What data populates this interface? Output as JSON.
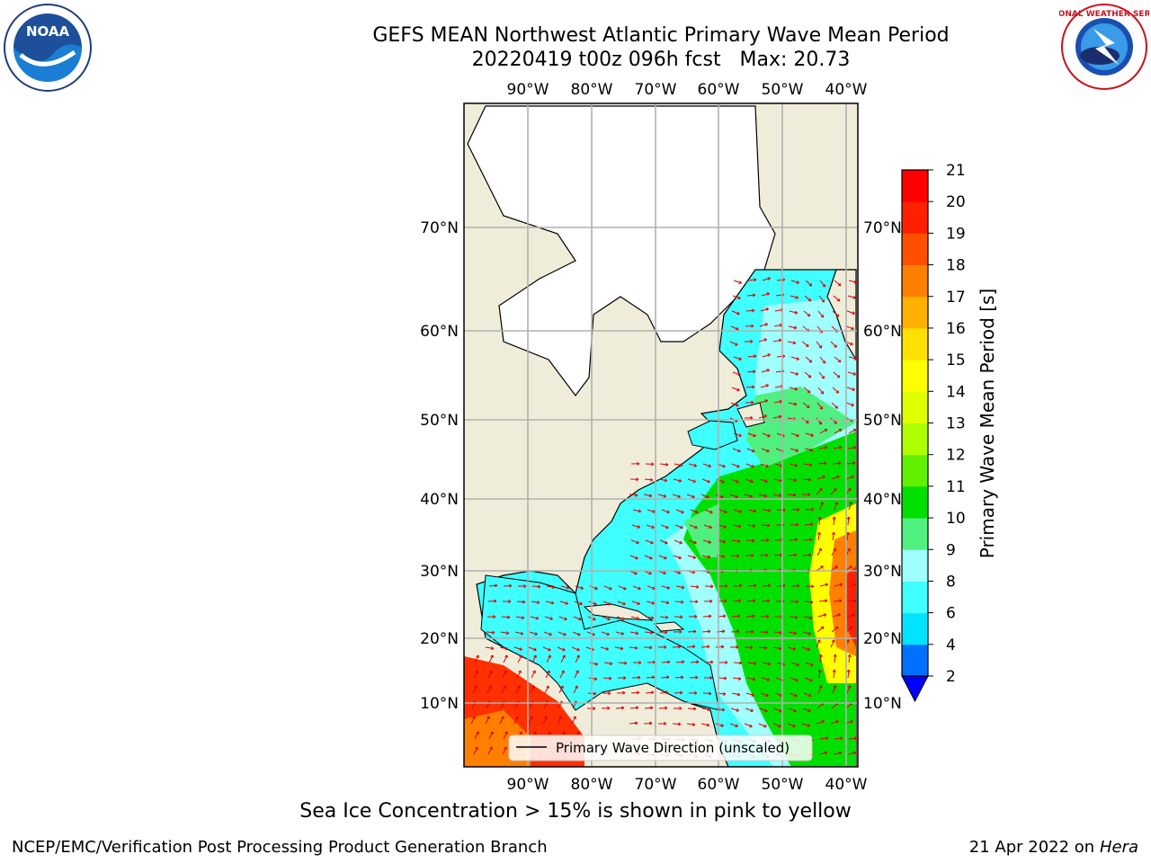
{
  "header": {
    "title_line1": "GEFS MEAN Northwest Atlantic Primary Wave Mean Period",
    "title_line2": "20220419 t00z 096h fcst   Max: 20.73"
  },
  "footer": {
    "note": "Sea Ice Concentration > 15% is shown in pink to yellow",
    "credit": "NCEP/EMC/Verification Post Processing Product Generation Branch",
    "date": "21 Apr 2022 on ",
    "machine": "Hera"
  },
  "logos": {
    "noaa_text": "NOAA",
    "nws_ring_text": "NATIONAL WEATHER SERVICE"
  },
  "map": {
    "lon_labels": [
      "90°W",
      "80°W",
      "70°W",
      "60°W",
      "50°W",
      "40°W"
    ],
    "lat_labels": [
      "70°N",
      "60°N",
      "50°N",
      "40°N",
      "30°N",
      "20°N",
      "10°N"
    ],
    "legend_label": "Primary Wave Direction (unscaled)",
    "colors": {
      "land": "#efedda",
      "ice": "#ffffff",
      "grid": "#b0b0b0"
    }
  },
  "colorbar": {
    "label": "Primary Wave Mean Period [s]",
    "ticks": [
      "2",
      "4",
      "6",
      "8",
      "9",
      "10",
      "11",
      "12",
      "13",
      "14",
      "15",
      "16",
      "17",
      "18",
      "19",
      "20",
      "21"
    ],
    "colors": [
      "#0070ff",
      "#00e4ff",
      "#40ffff",
      "#a0ffff",
      "#50f080",
      "#00e000",
      "#60f000",
      "#b0ff00",
      "#e0ff00",
      "#ffff00",
      "#ffe000",
      "#ffb000",
      "#ff8000",
      "#ff5000",
      "#ff2000",
      "#ff0000"
    ],
    "extend_color": "#0000ff"
  }
}
